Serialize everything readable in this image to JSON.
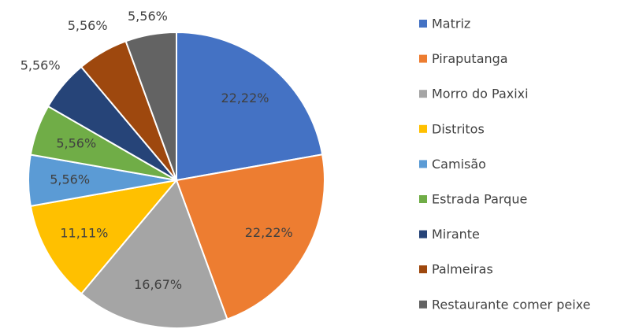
{
  "chart_data": {
    "type": "pie",
    "categories": [
      "Matriz",
      "Piraputanga",
      "Morro do Paxixi",
      "Distritos",
      "Camisão",
      "Estrada Parque",
      "Mirante",
      "Palmeiras",
      "Restaurante comer peixe"
    ],
    "values": [
      22.22,
      22.22,
      16.67,
      11.11,
      5.56,
      5.56,
      5.56,
      5.56,
      5.56
    ],
    "value_labels": [
      "22,22%",
      "22,22%",
      "16,67%",
      "11,11%",
      "5,56%",
      "5,56%",
      "5,56%",
      "5,56%",
      "5,56%"
    ],
    "colors": [
      "#4472c4",
      "#ed7d31",
      "#a5a5a5",
      "#ffc000",
      "#5b9bd5",
      "#70ad47",
      "#264478",
      "#9e480e",
      "#636363"
    ],
    "legend": "right"
  }
}
